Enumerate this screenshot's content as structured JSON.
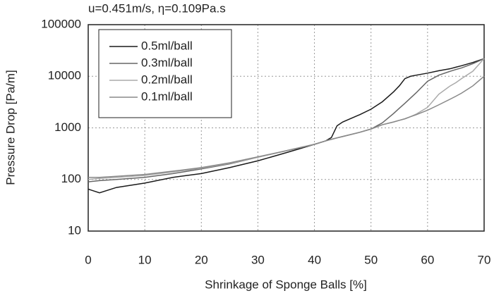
{
  "chart_data": {
    "type": "line",
    "title": "u=0.451m/s, η=0.109Pa.s",
    "x_label": "Shrinkage of Sponge Balls [%]",
    "y_label": "Pressure Drop [Pa/m]",
    "x": [
      0,
      2,
      5,
      10,
      15,
      20,
      25,
      30,
      35,
      40,
      42,
      43,
      44,
      45,
      48,
      50,
      52,
      54,
      55,
      56,
      57,
      58,
      60,
      62,
      64,
      65,
      66,
      68,
      70
    ],
    "series": [
      {
        "name": "0.5ml/ball",
        "color": "#1a1a1a",
        "values": [
          65,
          55,
          70,
          85,
          110,
          130,
          170,
          230,
          330,
          480,
          560,
          650,
          1100,
          1300,
          1800,
          2300,
          3200,
          5000,
          6500,
          9000,
          10000,
          10500,
          11500,
          12800,
          14000,
          15000,
          16000,
          18500,
          22000
        ]
      },
      {
        "name": "0.3ml/ball",
        "color": "#666666",
        "values": [
          90,
          95,
          100,
          110,
          130,
          160,
          200,
          270,
          360,
          480,
          560,
          600,
          640,
          680,
          820,
          950,
          1250,
          1900,
          2400,
          3000,
          3800,
          4800,
          8000,
          10500,
          12500,
          13500,
          14500,
          17500,
          22000
        ]
      },
      {
        "name": "0.2ml/ball",
        "color": "#aaaaaa",
        "values": [
          100,
          105,
          110,
          120,
          140,
          165,
          205,
          270,
          360,
          480,
          560,
          600,
          640,
          680,
          820,
          950,
          1150,
          1300,
          1400,
          1500,
          1650,
          1850,
          2500,
          4500,
          6500,
          7500,
          9000,
          12500,
          22000
        ]
      },
      {
        "name": "0.1ml/ball",
        "color": "#888888",
        "values": [
          110,
          110,
          115,
          125,
          145,
          170,
          210,
          275,
          360,
          480,
          560,
          600,
          640,
          680,
          820,
          950,
          1150,
          1300,
          1400,
          1500,
          1650,
          1800,
          2200,
          2800,
          3600,
          4100,
          4700,
          6500,
          10000
        ]
      }
    ],
    "xlim": [
      0,
      70
    ],
    "xticks": [
      0,
      10,
      20,
      30,
      40,
      50,
      60,
      70
    ],
    "ylim": [
      10,
      100000
    ],
    "yticks": [
      10,
      100,
      1000,
      10000,
      100000
    ],
    "log_y": true,
    "grid": true,
    "legend": "upper left"
  }
}
